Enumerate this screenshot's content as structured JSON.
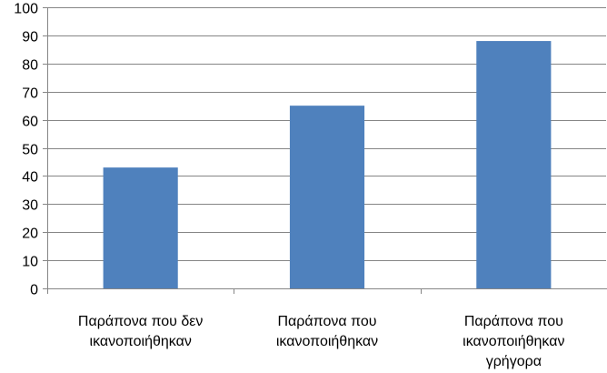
{
  "chart_data": {
    "type": "bar",
    "categories": [
      [
        "Παράπονα που δεν",
        "ικανοποιήθηκαν"
      ],
      [
        "Παράπονα που",
        "ικανοποιήθηκαν"
      ],
      [
        "Παράπονα που",
        "ικανοποιήθηκαν",
        "γρήγορα"
      ]
    ],
    "values": [
      43,
      65,
      88
    ],
    "ylim": [
      0,
      100
    ],
    "yticks": [
      0,
      10,
      20,
      30,
      40,
      50,
      60,
      70,
      80,
      90,
      100
    ],
    "grid": true,
    "legend": "none",
    "colors": {
      "bar": "#4f81bd",
      "grid": "#868686",
      "axis": "#868686"
    }
  }
}
